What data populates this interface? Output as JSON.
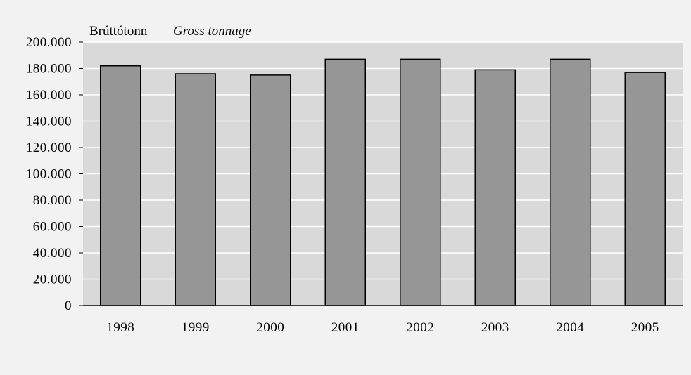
{
  "chart_data": {
    "type": "bar",
    "title": "Brúttótonn",
    "title_en": "Gross tonnage",
    "xlabel": "",
    "ylabel": "",
    "categories": [
      "1998",
      "1999",
      "2000",
      "2001",
      "2002",
      "2003",
      "2004",
      "2005"
    ],
    "values": [
      182000,
      176000,
      175000,
      187000,
      187000,
      179000,
      187000,
      177000
    ],
    "ylim": [
      0,
      200000
    ],
    "yticks": [
      {
        "value": 0,
        "label": "0"
      },
      {
        "value": 20000,
        "label": "20.000"
      },
      {
        "value": 40000,
        "label": "40.000"
      },
      {
        "value": 60000,
        "label": "60.000"
      },
      {
        "value": 80000,
        "label": "80.000"
      },
      {
        "value": 100000,
        "label": "100.000"
      },
      {
        "value": 120000,
        "label": "120.000"
      },
      {
        "value": 140000,
        "label": "140.000"
      },
      {
        "value": 160000,
        "label": "160.000"
      },
      {
        "value": 180000,
        "label": "180.000"
      },
      {
        "value": 200000,
        "label": "200.000"
      }
    ],
    "grid": true,
    "legend": "none",
    "colors": {
      "page_background": "#f2f2f2",
      "plot_background": "#d9d9d9",
      "bar_fill": "#969696",
      "bar_stroke": "#000000",
      "gridline": "#ffffff"
    }
  }
}
